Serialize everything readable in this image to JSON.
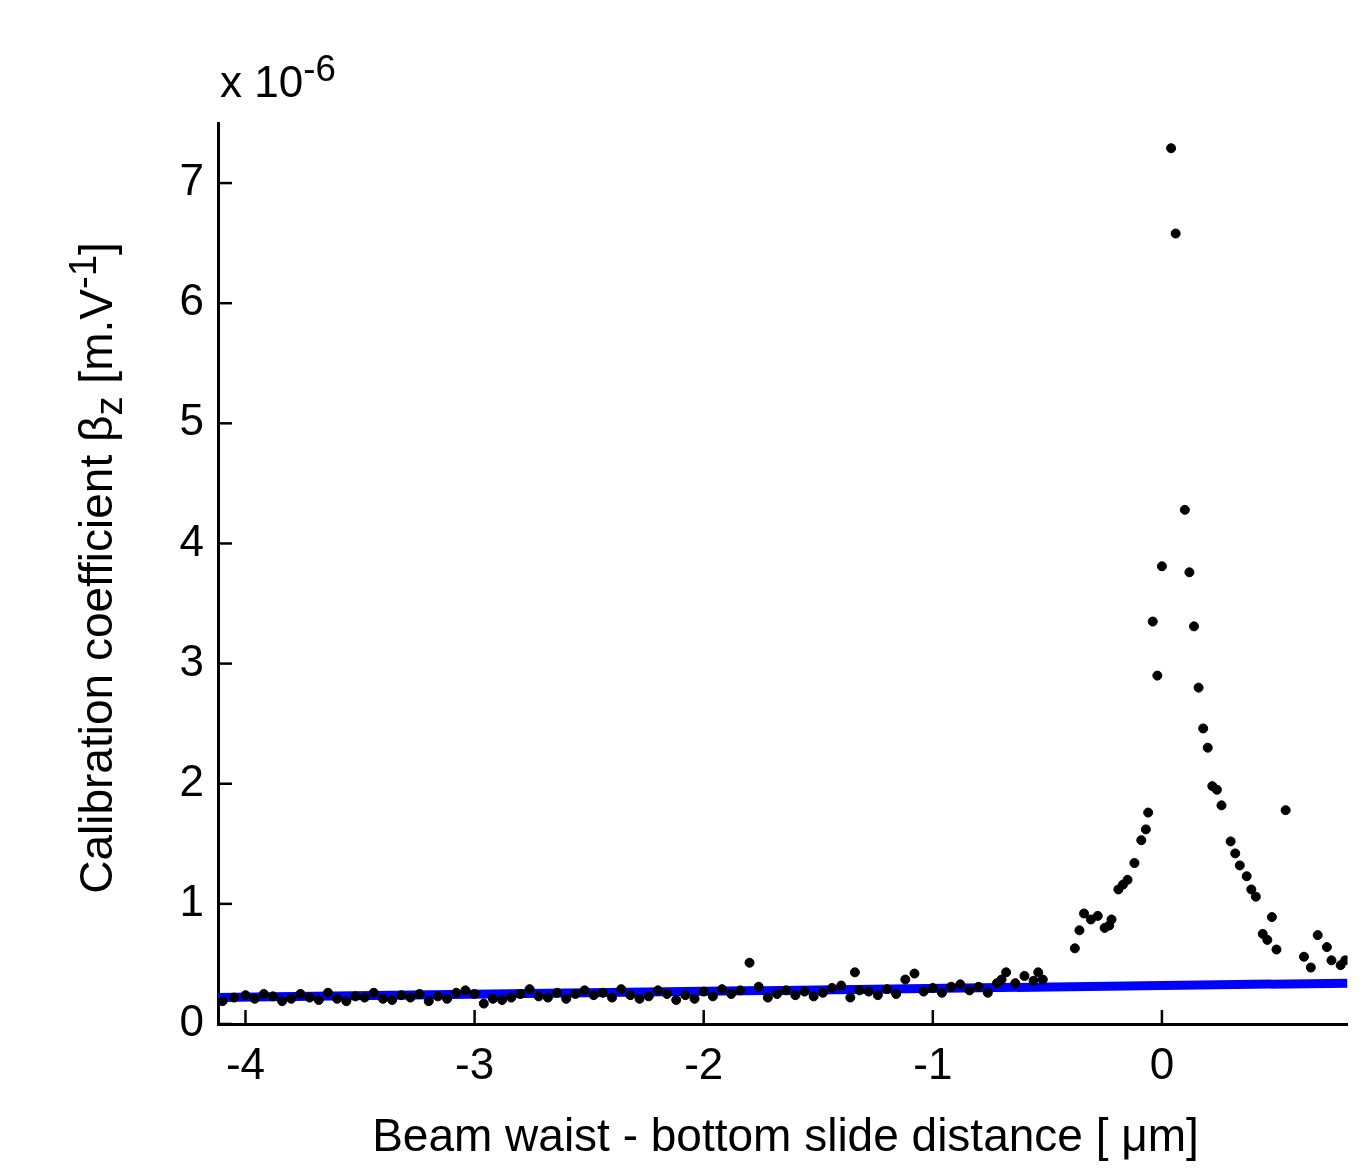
{
  "chart_data": {
    "type": "scatter",
    "xlabel": "Beam waist - bottom slide distance [ μm]",
    "ylabel": "Calibration coefficient β$_{z}$ [m.V$^{-1}$]",
    "annotations": [
      "x 10$^{-6}$"
    ],
    "xlim": [
      -4.12,
      0.81
    ],
    "ylim": [
      0,
      7.5
    ],
    "xticks": [
      -4,
      -3,
      -2,
      -1,
      0
    ],
    "yticks": [
      0,
      1,
      2,
      3,
      4,
      5,
      6,
      7
    ],
    "grid": false,
    "legend": false,
    "series": [
      {
        "type": "line",
        "color": "#0000ff",
        "marker": "none",
        "line_style": "solid",
        "x": [
          -4.12,
          0.81
        ],
        "values": [
          0.22,
          0.34
        ]
      },
      {
        "type": "scatter",
        "color": "#000000",
        "marker": "circle",
        "x": [
          -4.1,
          -4.05,
          -4.0,
          -3.96,
          -3.92,
          -3.88,
          -3.84,
          -3.8,
          -3.76,
          -3.72,
          -3.68,
          -3.64,
          -3.6,
          -3.56,
          -3.52,
          -3.48,
          -3.44,
          -3.4,
          -3.36,
          -3.32,
          -3.28,
          -3.24,
          -3.2,
          -3.16,
          -3.12,
          -3.08,
          -3.04,
          -3.0,
          -2.96,
          -2.92,
          -2.88,
          -2.84,
          -2.8,
          -2.76,
          -2.72,
          -2.68,
          -2.64,
          -2.6,
          -2.56,
          -2.52,
          -2.48,
          -2.44,
          -2.4,
          -2.36,
          -2.32,
          -2.28,
          -2.24,
          -2.2,
          -2.16,
          -2.12,
          -2.08,
          -2.04,
          -2.0,
          -1.96,
          -1.92,
          -1.88,
          -1.84,
          -1.8,
          -1.76,
          -1.72,
          -1.68,
          -1.64,
          -1.6,
          -1.56,
          -1.52,
          -1.48,
          -1.44,
          -1.4,
          -1.36,
          -1.34,
          -1.32,
          -1.28,
          -1.24,
          -1.2,
          -1.16,
          -1.12,
          -1.08,
          -1.04,
          -1.0,
          -0.96,
          -0.92,
          -0.88,
          -0.84,
          -0.8,
          -0.76,
          -0.72,
          -0.7,
          -0.68,
          -0.64,
          -0.6,
          -0.56,
          -0.54,
          -0.52,
          -0.38,
          -0.36,
          -0.34,
          -0.31,
          -0.28,
          -0.25,
          -0.23,
          -0.22,
          -0.19,
          -0.17,
          -0.15,
          -0.12,
          -0.09,
          -0.07,
          -0.06,
          -0.04,
          -0.02,
          0.0,
          0.04,
          0.06,
          0.1,
          0.12,
          0.14,
          0.16,
          0.18,
          0.2,
          0.22,
          0.24,
          0.26,
          0.3,
          0.32,
          0.34,
          0.37,
          0.39,
          0.41,
          0.44,
          0.46,
          0.48,
          0.5,
          0.54,
          0.62,
          0.65,
          0.68,
          0.72,
          0.74,
          0.78,
          0.8
        ],
        "values": [
          0.19,
          0.22,
          0.24,
          0.21,
          0.25,
          0.23,
          0.19,
          0.21,
          0.25,
          0.22,
          0.2,
          0.26,
          0.21,
          0.19,
          0.23,
          0.22,
          0.26,
          0.21,
          0.2,
          0.24,
          0.22,
          0.25,
          0.19,
          0.23,
          0.21,
          0.26,
          0.28,
          0.25,
          0.17,
          0.21,
          0.2,
          0.22,
          0.25,
          0.29,
          0.23,
          0.22,
          0.26,
          0.21,
          0.25,
          0.28,
          0.24,
          0.26,
          0.22,
          0.29,
          0.24,
          0.21,
          0.23,
          0.28,
          0.25,
          0.2,
          0.24,
          0.21,
          0.27,
          0.23,
          0.29,
          0.25,
          0.28,
          0.51,
          0.31,
          0.22,
          0.25,
          0.28,
          0.24,
          0.27,
          0.23,
          0.26,
          0.3,
          0.32,
          0.22,
          0.43,
          0.28,
          0.27,
          0.24,
          0.29,
          0.25,
          0.37,
          0.42,
          0.27,
          0.3,
          0.26,
          0.31,
          0.33,
          0.28,
          0.31,
          0.26,
          0.34,
          0.37,
          0.43,
          0.34,
          0.4,
          0.36,
          0.43,
          0.37,
          0.63,
          0.78,
          0.92,
          0.87,
          0.9,
          0.8,
          0.82,
          0.87,
          1.12,
          1.16,
          1.2,
          1.34,
          1.53,
          1.62,
          1.76,
          3.35,
          2.9,
          3.81,
          7.29,
          6.58,
          4.28,
          3.76,
          3.31,
          2.8,
          2.46,
          2.3,
          1.98,
          1.95,
          1.82,
          1.52,
          1.42,
          1.32,
          1.23,
          1.12,
          1.06,
          0.75,
          0.7,
          0.89,
          0.62,
          1.78,
          0.56,
          0.47,
          0.74,
          0.64,
          0.53,
          0.49,
          0.53
        ]
      }
    ]
  }
}
